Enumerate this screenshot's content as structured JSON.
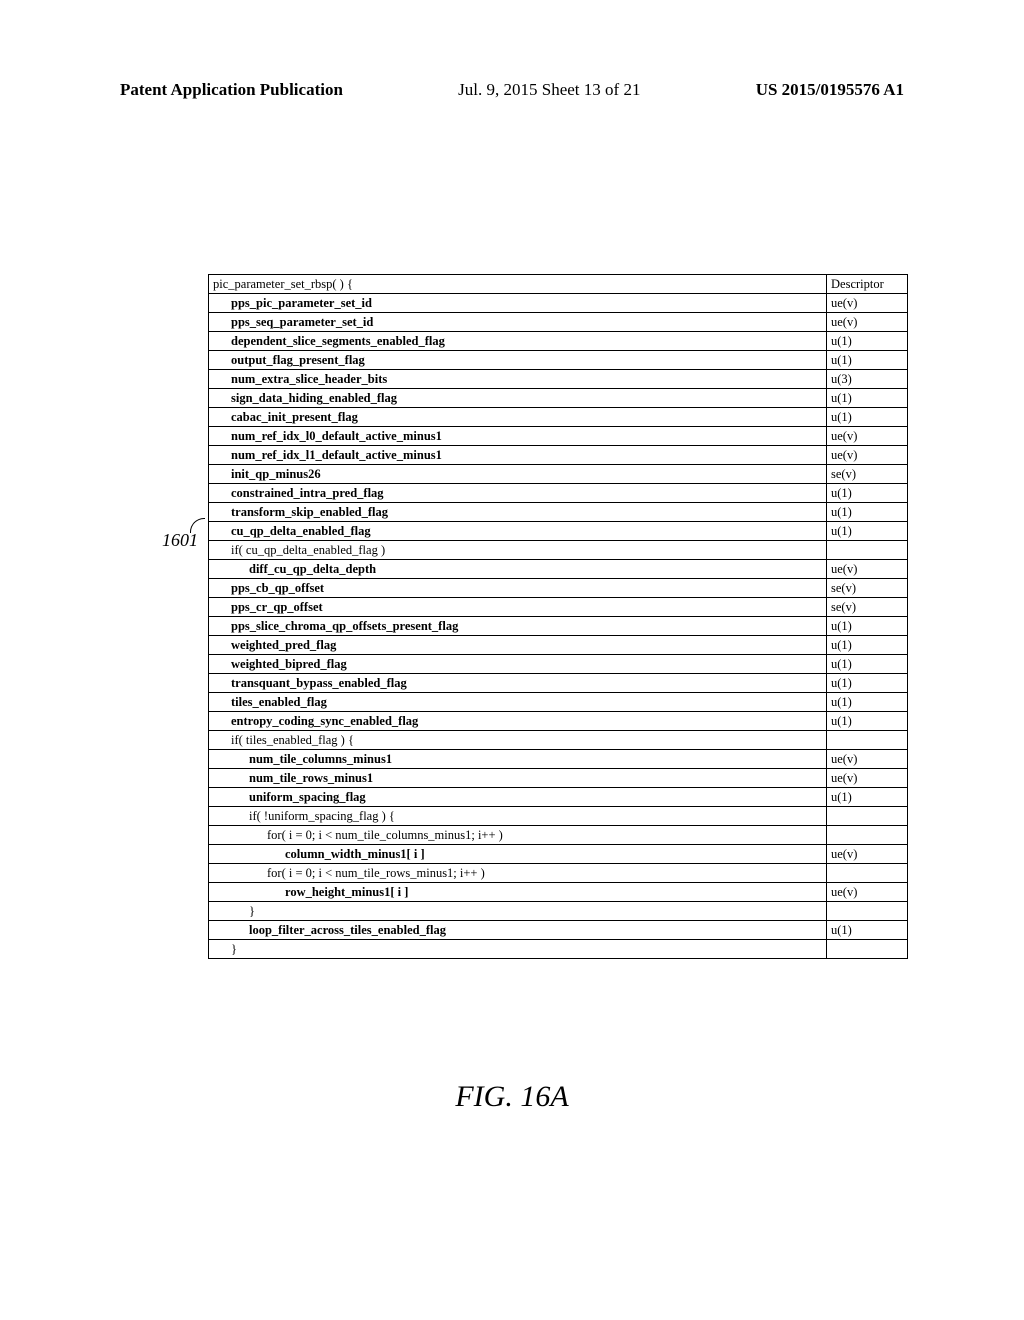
{
  "header": {
    "left": "Patent Application Publication",
    "center": "Jul. 9, 2015   Sheet 13 of 21",
    "right": "US 2015/0195576 A1"
  },
  "ref": {
    "label": "1601"
  },
  "caption": "FIG. 16A",
  "table": {
    "header_left": "pic_parameter_set_rbsp( ) {",
    "header_right": "Descriptor",
    "rows": [
      {
        "text": "pps_pic_parameter_set_id",
        "desc": "ue(v)",
        "indent": 1,
        "bold": true
      },
      {
        "text": "pps_seq_parameter_set_id",
        "desc": "ue(v)",
        "indent": 1,
        "bold": true
      },
      {
        "text": "dependent_slice_segments_enabled_flag",
        "desc": "u(1)",
        "indent": 1,
        "bold": true
      },
      {
        "text": "output_flag_present_flag",
        "desc": "u(1)",
        "indent": 1,
        "bold": true
      },
      {
        "text": "num_extra_slice_header_bits",
        "desc": "u(3)",
        "indent": 1,
        "bold": true
      },
      {
        "text": "sign_data_hiding_enabled_flag",
        "desc": "u(1)",
        "indent": 1,
        "bold": true
      },
      {
        "text": "cabac_init_present_flag",
        "desc": "u(1)",
        "indent": 1,
        "bold": true
      },
      {
        "text": "num_ref_idx_l0_default_active_minus1",
        "desc": "ue(v)",
        "indent": 1,
        "bold": true
      },
      {
        "text": "num_ref_idx_l1_default_active_minus1",
        "desc": "ue(v)",
        "indent": 1,
        "bold": true
      },
      {
        "text": "init_qp_minus26",
        "desc": "se(v)",
        "indent": 1,
        "bold": true
      },
      {
        "text": "constrained_intra_pred_flag",
        "desc": "u(1)",
        "indent": 1,
        "bold": true
      },
      {
        "text": "transform_skip_enabled_flag",
        "desc": "u(1)",
        "indent": 1,
        "bold": true
      },
      {
        "text": "cu_qp_delta_enabled_flag",
        "desc": "u(1)",
        "indent": 1,
        "bold": true
      },
      {
        "text": "if( cu_qp_delta_enabled_flag )",
        "desc": "",
        "indent": 1,
        "bold": false
      },
      {
        "text": "diff_cu_qp_delta_depth",
        "desc": "ue(v)",
        "indent": 2,
        "bold": true
      },
      {
        "text": "pps_cb_qp_offset",
        "desc": "se(v)",
        "indent": 1,
        "bold": true
      },
      {
        "text": "pps_cr_qp_offset",
        "desc": "se(v)",
        "indent": 1,
        "bold": true
      },
      {
        "text": "pps_slice_chroma_qp_offsets_present_flag",
        "desc": "u(1)",
        "indent": 1,
        "bold": true
      },
      {
        "text": "weighted_pred_flag",
        "desc": "u(1)",
        "indent": 1,
        "bold": true
      },
      {
        "text": "weighted_bipred_flag",
        "desc": "u(1)",
        "indent": 1,
        "bold": true
      },
      {
        "text": "transquant_bypass_enabled_flag",
        "desc": "u(1)",
        "indent": 1,
        "bold": true
      },
      {
        "text": "tiles_enabled_flag",
        "desc": "u(1)",
        "indent": 1,
        "bold": true
      },
      {
        "text": "entropy_coding_sync_enabled_flag",
        "desc": "u(1)",
        "indent": 1,
        "bold": true
      },
      {
        "text": "if( tiles_enabled_flag ) {",
        "desc": "",
        "indent": 1,
        "bold": false
      },
      {
        "text": "num_tile_columns_minus1",
        "desc": "ue(v)",
        "indent": 2,
        "bold": true
      },
      {
        "text": "num_tile_rows_minus1",
        "desc": "ue(v)",
        "indent": 2,
        "bold": true
      },
      {
        "text": "uniform_spacing_flag",
        "desc": "u(1)",
        "indent": 2,
        "bold": true
      },
      {
        "text": "if( !uniform_spacing_flag ) {",
        "desc": "",
        "indent": 2,
        "bold": false
      },
      {
        "text": "for( i = 0; i < num_tile_columns_minus1; i++ )",
        "desc": "",
        "indent": 3,
        "bold": false
      },
      {
        "text": "column_width_minus1[ i ]",
        "desc": "ue(v)",
        "indent": 4,
        "bold": true
      },
      {
        "text": "for( i = 0; i < num_tile_rows_minus1; i++ )",
        "desc": "",
        "indent": 3,
        "bold": false
      },
      {
        "text": "row_height_minus1[ i ]",
        "desc": "ue(v)",
        "indent": 4,
        "bold": true
      },
      {
        "text": "}",
        "desc": "",
        "indent": 2,
        "bold": false
      },
      {
        "text": "loop_filter_across_tiles_enabled_flag",
        "desc": "u(1)",
        "indent": 2,
        "bold": true
      },
      {
        "text": "}",
        "desc": "",
        "indent": 1,
        "bold": false
      }
    ]
  }
}
